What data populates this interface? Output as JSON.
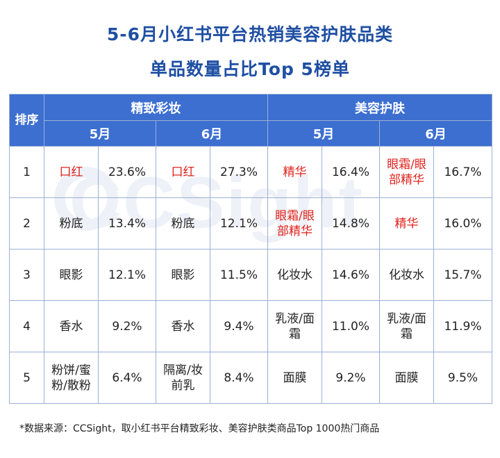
{
  "title_line1": "5-6月小红书平台热销美容护肤品类",
  "title_line2": "单品数量占比Top 5榜单",
  "watermark_text": "CCSight",
  "header": {
    "rank": "排序",
    "group_makeup": "精致彩妆",
    "group_skincare": "美容护肤",
    "month_may": "5月",
    "month_june": "6月"
  },
  "chart_data": {
    "type": "table",
    "title": "5-6月小红书平台热销美容护肤品类单品数量占比Top 5榜单",
    "columns": [
      "排序",
      "精致彩妆 5月",
      "精致彩妆 6月",
      "美容护肤 5月",
      "美容护肤 6月"
    ],
    "highlight_color": "#e0221c",
    "rows": [
      {
        "rank": "1",
        "makeup_may": {
          "name": "口红",
          "pct": "23.6%",
          "highlight": true
        },
        "makeup_june": {
          "name": "口红",
          "pct": "27.3%",
          "highlight": true
        },
        "skin_may": {
          "name": "精华",
          "pct": "16.4%",
          "highlight": true
        },
        "skin_june": {
          "name": "眼霜/眼部精华",
          "pct": "16.7%",
          "highlight": true
        }
      },
      {
        "rank": "2",
        "makeup_may": {
          "name": "粉底",
          "pct": "13.4%",
          "highlight": false
        },
        "makeup_june": {
          "name": "粉底",
          "pct": "12.1%",
          "highlight": false
        },
        "skin_may": {
          "name": "眼霜/眼部精华",
          "pct": "14.8%",
          "highlight": true
        },
        "skin_june": {
          "name": "精华",
          "pct": "16.0%",
          "highlight": true
        }
      },
      {
        "rank": "3",
        "makeup_may": {
          "name": "眼影",
          "pct": "12.1%",
          "highlight": false
        },
        "makeup_june": {
          "name": "眼影",
          "pct": "11.5%",
          "highlight": false
        },
        "skin_may": {
          "name": "化妆水",
          "pct": "14.6%",
          "highlight": false
        },
        "skin_june": {
          "name": "化妆水",
          "pct": "15.7%",
          "highlight": false
        }
      },
      {
        "rank": "4",
        "makeup_may": {
          "name": "香水",
          "pct": "9.2%",
          "highlight": false
        },
        "makeup_june": {
          "name": "香水",
          "pct": "9.4%",
          "highlight": false
        },
        "skin_may": {
          "name": "乳液/面霜",
          "pct": "11.0%",
          "highlight": false
        },
        "skin_june": {
          "name": "乳液/面霜",
          "pct": "11.9%",
          "highlight": false
        }
      },
      {
        "rank": "5",
        "makeup_may": {
          "name": "粉饼/蜜粉/散粉",
          "pct": "6.4%",
          "highlight": false
        },
        "makeup_june": {
          "name": "隔离/妆前乳",
          "pct": "8.4%",
          "highlight": false
        },
        "skin_may": {
          "name": "面膜",
          "pct": "9.2%",
          "highlight": false
        },
        "skin_june": {
          "name": "面膜",
          "pct": "9.5%",
          "highlight": false
        }
      }
    ]
  },
  "footnote": "*数据来源：CCSight，取小红书平台精致彩妆、美容护肤类商品Top 1000热门商品"
}
